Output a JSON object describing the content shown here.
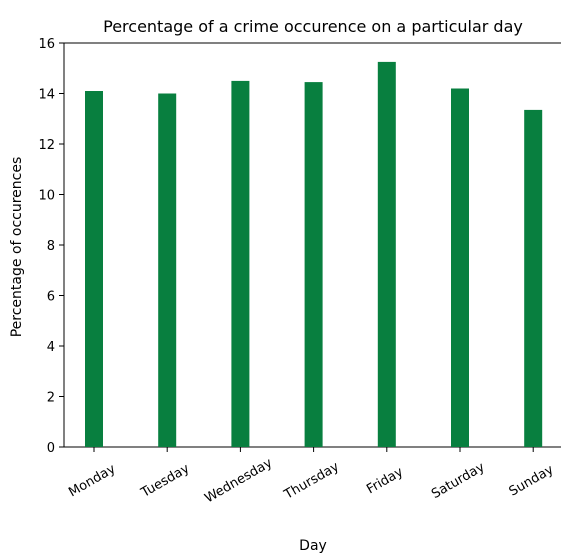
{
  "chart_data": {
    "type": "bar",
    "title": "Percentage of a crime occurence on a particular day",
    "xlabel": "Day",
    "ylabel": "Percentage of occurences",
    "categories": [
      "Monday",
      "Tuesday",
      "Wednesday",
      "Thursday",
      "Friday",
      "Saturday",
      "Sunday"
    ],
    "values": [
      14.1,
      14.0,
      14.5,
      14.45,
      15.25,
      14.2,
      13.35
    ],
    "ylim": [
      0,
      16
    ],
    "yticks": [
      "0",
      "2",
      "4",
      "6",
      "8",
      "10",
      "12",
      "14",
      "16"
    ],
    "bar_color": "#087f3f",
    "grid": false,
    "legend": "none"
  }
}
